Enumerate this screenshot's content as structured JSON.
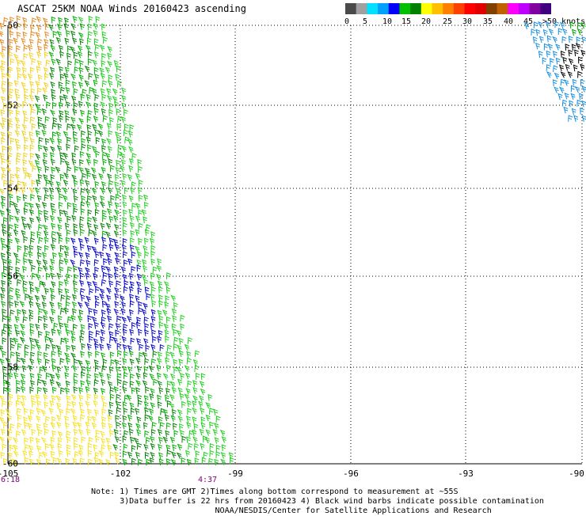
{
  "title": "ASCAT 25KM NOAA Winds 20160423 ascending",
  "legend": {
    "colors": [
      "#4a4a4a",
      "#a0a0a0",
      "#00e0ff",
      "#00a0ff",
      "#0000ff",
      "#00c000",
      "#008000",
      "#ffff00",
      "#ffc000",
      "#ff8000",
      "#ff4000",
      "#ff0000",
      "#e00000",
      "#804000",
      "#c06000",
      "#ff00ff",
      "#c000ff",
      "#8000a0",
      "#400080"
    ],
    "labels": [
      "0",
      "5",
      "10",
      "15",
      "20",
      "25",
      "30",
      "35",
      "40",
      "45",
      ">50 knots"
    ]
  },
  "lon_ticks": [
    "-105",
    "-102",
    "-99",
    "-96",
    "-93",
    "-90"
  ],
  "lat_ticks": [
    "-50",
    "-52",
    "-54",
    "-56",
    "-58",
    "-60"
  ],
  "times": {
    "left": "6:18",
    "mid": "4:37"
  },
  "notes": {
    "line1": "Note: 1) Times are GMT 2)Times along bottom correspond to measurement at ~55S",
    "line2": "      3)Data buffer is 22 hrs from 20160423 4) Black wind barbs indicate possible contamination",
    "line3": "                          NOAA/NESDIS/Center for Satellite Applications and Research"
  }
}
